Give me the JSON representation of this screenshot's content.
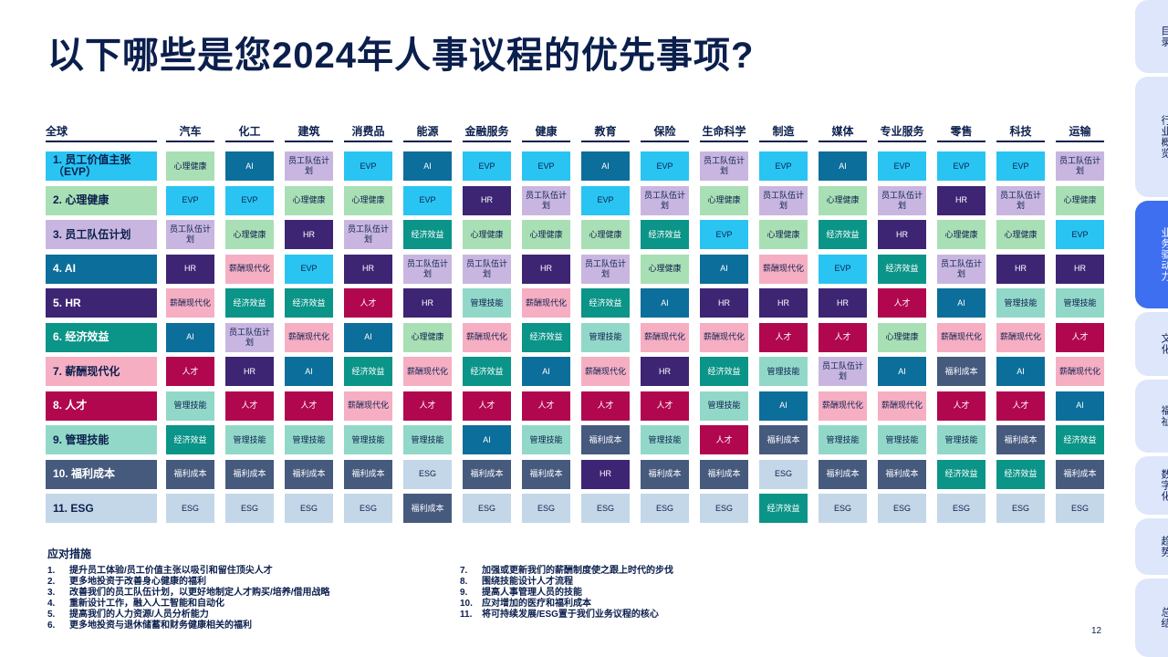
{
  "title": "以下哪些是您2024年人事议程的优先事项?",
  "first_header": "全球",
  "columns": [
    "汽车",
    "化工",
    "建筑",
    "消费品",
    "能源",
    "金融服务",
    "健康",
    "教育",
    "保险",
    "生命科学",
    "制造",
    "媒体",
    "专业服务",
    "零售",
    "科技",
    "运输"
  ],
  "rows": [
    {
      "label": "1. 员工价值主张\n（EVP）",
      "key": "evp",
      "cells": [
        "mh",
        "ai",
        "wp",
        "evp",
        "ai",
        "evp",
        "evp",
        "ai",
        "evp",
        "wp",
        "evp",
        "ai",
        "evp",
        "evp",
        "evp",
        "wp"
      ]
    },
    {
      "label": "2. 心理健康",
      "key": "mh",
      "cells": [
        "evp",
        "evp",
        "mh",
        "mh",
        "evp",
        "hr",
        "wp",
        "evp",
        "wp",
        "mh",
        "wp",
        "mh",
        "wp",
        "hr",
        "wp",
        "mh"
      ]
    },
    {
      "label": "3. 员工队伍计划",
      "key": "wp",
      "cells": [
        "wp",
        "mh",
        "hr",
        "wp",
        "eco",
        "mh",
        "mh",
        "mh",
        "eco",
        "evp",
        "mh",
        "eco",
        "hr",
        "mh",
        "mh",
        "evp"
      ]
    },
    {
      "label": "4. AI",
      "key": "ai",
      "cells": [
        "hr",
        "pay",
        "evp",
        "hr",
        "wp",
        "wp",
        "hr",
        "wp",
        "mh",
        "ai",
        "pay",
        "evp",
        "eco",
        "wp",
        "hr",
        "hr"
      ]
    },
    {
      "label": "5. HR",
      "key": "hr",
      "cells": [
        "pay",
        "eco",
        "eco",
        "tal",
        "hr",
        "mgmt",
        "pay",
        "eco",
        "ai",
        "hr",
        "hr",
        "hr",
        "tal",
        "ai",
        "mgmt",
        "mgmt"
      ]
    },
    {
      "label": "6. 经济效益",
      "key": "eco",
      "cells": [
        "ai",
        "wp",
        "pay",
        "ai",
        "mh",
        "pay",
        "eco",
        "mgmt",
        "pay",
        "pay",
        "tal",
        "tal",
        "mh",
        "pay",
        "pay",
        "tal"
      ]
    },
    {
      "label": "7. 薪酬现代化",
      "key": "pay",
      "cells": [
        "tal",
        "hr",
        "ai",
        "eco",
        "pay",
        "eco",
        "ai",
        "pay",
        "hr",
        "eco",
        "mgmt",
        "wp",
        "ai",
        "ben",
        "ai",
        "pay"
      ]
    },
    {
      "label": "8. 人才",
      "key": "tal",
      "cells": [
        "mgmt",
        "tal",
        "tal",
        "pay",
        "tal",
        "tal",
        "tal",
        "tal",
        "tal",
        "mgmt",
        "ai",
        "pay",
        "pay",
        "tal",
        "tal",
        "ai"
      ]
    },
    {
      "label": "9. 管理技能",
      "key": "mgmt",
      "cells": [
        "eco",
        "mgmt",
        "mgmt",
        "mgmt",
        "mgmt",
        "ai",
        "mgmt",
        "ben",
        "mgmt",
        "tal",
        "ben",
        "mgmt",
        "mgmt",
        "mgmt",
        "ben",
        "eco"
      ]
    },
    {
      "label": "10. 福利成本",
      "key": "ben",
      "cells": [
        "ben",
        "ben",
        "ben",
        "ben",
        "esg",
        "ben",
        "ben",
        "hr",
        "ben",
        "ben",
        "esg",
        "ben",
        "ben",
        "eco",
        "eco",
        "ben"
      ]
    },
    {
      "label": "11. ESG",
      "key": "esg",
      "cells": [
        "esg",
        "esg",
        "esg",
        "esg",
        "ben",
        "esg",
        "esg",
        "esg",
        "esg",
        "esg",
        "eco",
        "esg",
        "esg",
        "esg",
        "esg",
        "esg"
      ]
    }
  ],
  "categories": {
    "evp": {
      "text": "EVP",
      "bg": "#29c4f2",
      "fg": "#0b1f4d"
    },
    "mh": {
      "text": "心理健康",
      "bg": "#a9dfb4",
      "fg": "#0b1f4d"
    },
    "wp": {
      "text": "员工队伍计划",
      "bg": "#c8b6e0",
      "fg": "#0b1f4d"
    },
    "ai": {
      "text": "AI",
      "bg": "#0c6e9a",
      "fg": "#ffffff"
    },
    "hr": {
      "text": "HR",
      "bg": "#3d2574",
      "fg": "#ffffff"
    },
    "eco": {
      "text": "经济效益",
      "bg": "#0b9488",
      "fg": "#ffffff"
    },
    "pay": {
      "text": "薪酬现代化",
      "bg": "#f6aec3",
      "fg": "#0b1f4d"
    },
    "tal": {
      "text": "人才",
      "bg": "#b0074f",
      "fg": "#ffffff"
    },
    "mgmt": {
      "text": "管理技能",
      "bg": "#92d8c9",
      "fg": "#0b1f4d"
    },
    "ben": {
      "text": "福利成本",
      "bg": "#465a7e",
      "fg": "#ffffff"
    },
    "esg": {
      "text": "ESG",
      "bg": "#c3d7e8",
      "fg": "#0b1f4d"
    }
  },
  "responses_title": "应对措施",
  "responses_left": [
    {
      "n": "1.",
      "t": "提升员工体验/员工价值主张以吸引和留住顶尖人才"
    },
    {
      "n": "2.",
      "t": "更多地投资于改善身心健康的福利"
    },
    {
      "n": "3.",
      "t": "改善我们的员工队伍计划，以更好地制定人才购买/培养/借用战略"
    },
    {
      "n": "4.",
      "t": "重新设计工作，融入人工智能和自动化"
    },
    {
      "n": "5.",
      "t": "提高我们的人力资源/人员分析能力"
    },
    {
      "n": "6.",
      "t": "更多地投资与退休储蓄和财务健康相关的福利"
    }
  ],
  "responses_right": [
    {
      "n": "7.",
      "t": "加强或更新我们的薪酬制度使之跟上时代的步伐"
    },
    {
      "n": "8.",
      "t": "围绕技能设计人才流程"
    },
    {
      "n": "9.",
      "t": "提高人事管理人员的技能"
    },
    {
      "n": "10.",
      "t": "应对增加的医疗和福利成本"
    },
    {
      "n": "11.",
      "t": "将可持续发展/ESG置于我们业务议程的核心"
    }
  ],
  "page_number": "12",
  "side_tabs": [
    {
      "label": "目录",
      "active": false
    },
    {
      "label": "行业概览",
      "active": false
    },
    {
      "label": "业务驱动力",
      "active": true
    },
    {
      "label": "文化",
      "active": false
    },
    {
      "label": "福祉",
      "active": false
    },
    {
      "label": "数字化",
      "active": false
    },
    {
      "label": "趋势",
      "active": false
    },
    {
      "label": "总结",
      "active": false
    }
  ]
}
